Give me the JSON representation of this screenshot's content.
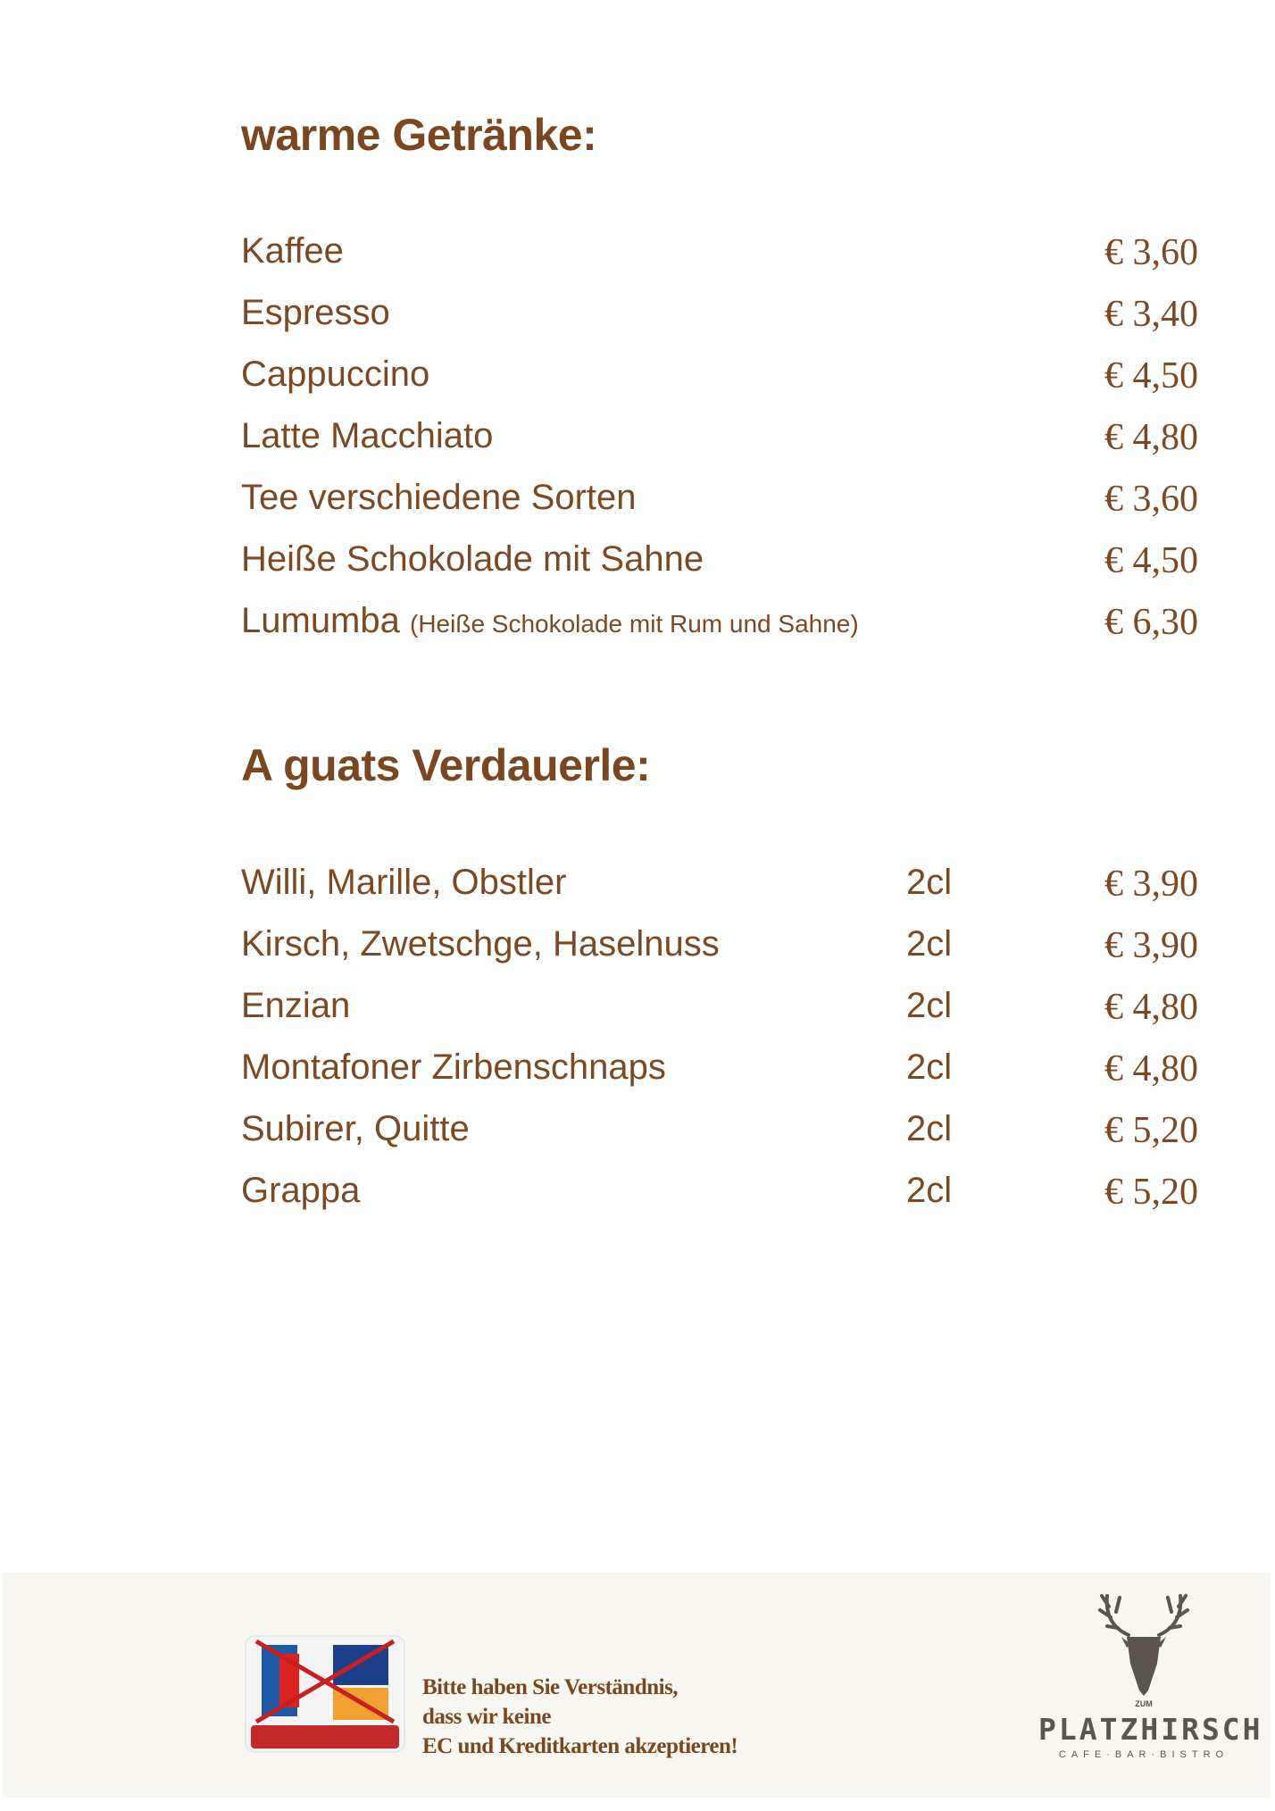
{
  "sections": [
    {
      "title": "warme Getränke:",
      "items": [
        {
          "name": "Kaffee",
          "note": "",
          "price": "€ 3,60"
        },
        {
          "name": "Espresso",
          "note": "",
          "price": "€ 3,40"
        },
        {
          "name": "Cappuccino",
          "note": "",
          "price": "€ 4,50"
        },
        {
          "name": "Latte Macchiato",
          "note": "",
          "price": "€ 4,80"
        },
        {
          "name": "Tee verschiedene Sorten",
          "note": "",
          "price": "€ 3,60"
        },
        {
          "name": "Heiße Schokolade mit Sahne",
          "note": "",
          "price": "€ 4,50"
        },
        {
          "name": "Lumumba",
          "note": "(Heiße Schokolade mit Rum und Sahne)",
          "price": "€ 6,30"
        }
      ]
    },
    {
      "title": "A guats Verdauerle:",
      "items": [
        {
          "name": "Willi, Marille, Obstler",
          "size": "2cl",
          "price": "€ 3,90"
        },
        {
          "name": "Kirsch, Zwetschge, Haselnuss",
          "size": "2cl",
          "price": "€ 3,90"
        },
        {
          "name": "Enzian",
          "size": "2cl",
          "price": "€ 4,80"
        },
        {
          "name": "Montafoner Zirbenschnaps",
          "size": "2cl",
          "price": "€ 4,80"
        },
        {
          "name": "Subirer, Quitte",
          "size": "2cl",
          "price": "€ 5,20"
        },
        {
          "name": "Grappa",
          "size": "2cl",
          "price": "€ 5,20"
        }
      ]
    }
  ],
  "footer": {
    "notice_lines": [
      "Bitte haben Sie Verständnis,",
      "dass wir keine",
      "EC und Kreditkarten akzeptieren!"
    ],
    "card_icon": "no-card-payment-icon",
    "logo": {
      "small": "ZUM",
      "name": "PLATZHIRSCH",
      "sub": "CAFE·BAR·BISTRO"
    }
  },
  "colors": {
    "text": "#7b4a24",
    "footer_bg": "#f8f6f1",
    "logo": "#5a5550"
  }
}
